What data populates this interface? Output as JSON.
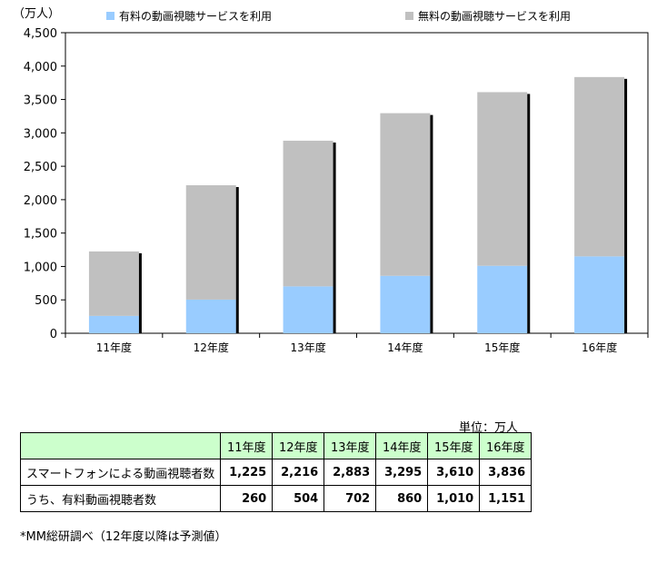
{
  "chart_data": {
    "type": "bar",
    "stacked": true,
    "unit_label": "（万人）",
    "categories": [
      "11年度",
      "12年度",
      "13年度",
      "14年度",
      "15年度",
      "16年度"
    ],
    "series": [
      {
        "name": "有料の動画視聴サービスを利用",
        "color": "#99ccff",
        "values": [
          260,
          504,
          702,
          860,
          1010,
          1151
        ]
      },
      {
        "name": "無料の動画視聴サービスを利用",
        "color": "#c0c0c0",
        "values": [
          965,
          1712,
          2181,
          2435,
          2600,
          2685
        ]
      }
    ],
    "ylim": [
      0,
      4500
    ],
    "yticks": [
      0,
      500,
      1000,
      1500,
      2000,
      2500,
      3000,
      3500,
      4000,
      4500
    ],
    "ytick_labels": [
      "0",
      "500",
      "1,000",
      "1,500",
      "2,000",
      "2,500",
      "3,000",
      "3,500",
      "4,000",
      "4,500"
    ],
    "grid": false,
    "legend_position": "top"
  },
  "table": {
    "unit": "単位：万人",
    "headers": [
      "",
      "11年度",
      "12年度",
      "13年度",
      "14年度",
      "15年度",
      "16年度"
    ],
    "rows": [
      {
        "label": "スマートフォンによる動画視聴者数",
        "values": [
          "1,225",
          "2,216",
          "2,883",
          "3,295",
          "3,610",
          "3,836"
        ]
      },
      {
        "label": "うち、有料動画視聴者数",
        "values": [
          "260",
          "504",
          "702",
          "860",
          "1,010",
          "1,151"
        ]
      }
    ]
  },
  "note": "*MM総研調べ（12年度以降は予測値）"
}
